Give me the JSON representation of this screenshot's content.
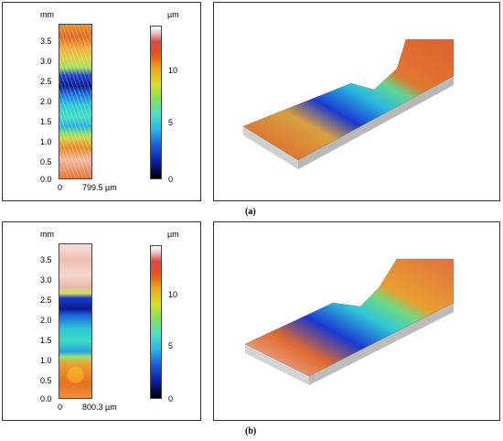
{
  "panel_a": {
    "y_unit": "mm",
    "y_ticks": [
      "0.0",
      "0.5",
      "1.0",
      "1.5",
      "2.0",
      "2.5",
      "3.0",
      "3.5"
    ],
    "x_tick_start": "0",
    "x_tick_end": "799.5 µm",
    "colorbar_unit": "µm",
    "colorbar_ticks": [
      "0",
      "5",
      "10"
    ],
    "caption": "(a)"
  },
  "panel_b": {
    "y_unit": "mm",
    "y_ticks": [
      "0.0",
      "0.5",
      "1.0",
      "1.5",
      "2.0",
      "2.5",
      "3.0",
      "3.5"
    ],
    "x_tick_start": "0",
    "x_tick_end": "800.3 µm",
    "colorbar_unit": "µm",
    "colorbar_ticks": [
      "0",
      "5",
      "10"
    ],
    "caption": "(b)"
  }
}
